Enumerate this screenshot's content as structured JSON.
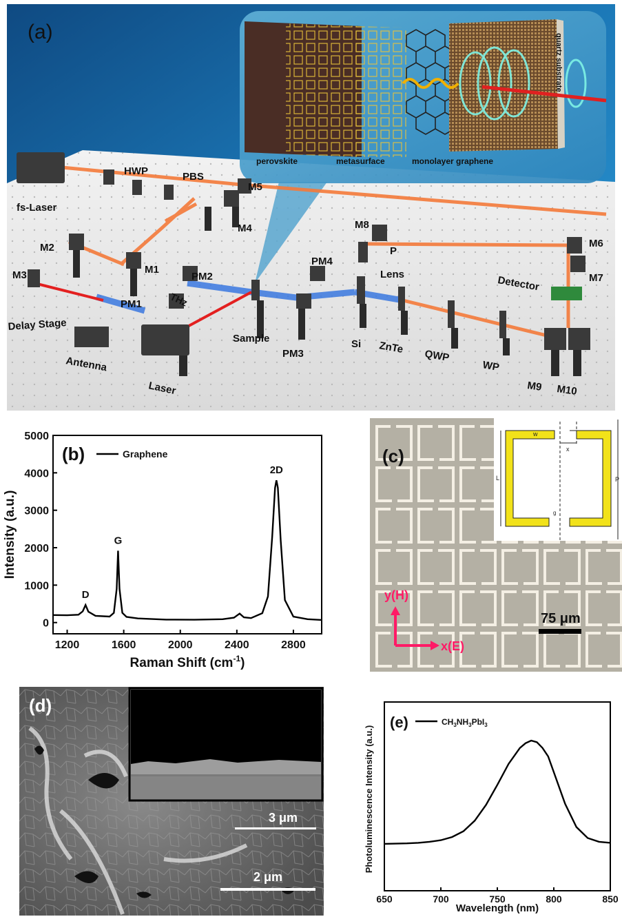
{
  "panel_a": {
    "letter": "(a)",
    "inset_labels": {
      "perovskite": "perovskite",
      "metasurface": "metasurface",
      "graphene": "monolayer graphene",
      "substrate": "quartz substrate"
    },
    "components": {
      "fs_laser": "fs-Laser",
      "hwp": "HWP",
      "pbs": "PBS",
      "m1": "M1",
      "m2": "M2",
      "m3": "M3",
      "m4": "M4",
      "m5": "M5",
      "m6": "M6",
      "m7": "M7",
      "m8": "M8",
      "m9": "M9",
      "m10": "M10",
      "pm1": "PM1",
      "pm2": "PM2",
      "pm3": "PM3",
      "pm4": "PM4",
      "thz": "THz",
      "delay_stage": "Delay Stage",
      "antenna": "Antenna",
      "laser": "Laser",
      "sample": "Sample",
      "si": "Si",
      "znte": "ZnTe",
      "qwp": "QWP",
      "wp": "WP",
      "p": "P",
      "lens": "Lens",
      "detector": "Detector"
    }
  },
  "panel_c": {
    "letter": "(c)",
    "scalebar": "75 μm",
    "axis_y": "y(H)",
    "axis_x": "x(E)",
    "inset": {
      "w": "w",
      "x": "x",
      "L": "L",
      "P": "P",
      "g": "g"
    }
  },
  "panel_d": {
    "letter": "(d)",
    "scalebar_main": "2 μm",
    "scalebar_inset": "3 μm"
  },
  "chart_data": [
    {
      "type": "line",
      "panel": "(b)",
      "xlabel_main": "Raman Shift (cm",
      "xlabel_sup": "-1",
      "xlabel_end": ")",
      "ylabel": "Intensity (a.u.)",
      "xlim": [
        1100,
        3000
      ],
      "ylim": [
        -300,
        5000
      ],
      "xticks": [
        1200,
        1600,
        2000,
        2400,
        2800
      ],
      "yticks": [
        0,
        1000,
        2000,
        3000,
        4000,
        5000
      ],
      "legend": "Graphene",
      "annotations": [
        {
          "text": "D",
          "x": 1330,
          "y": 470
        },
        {
          "text": "G",
          "x": 1560,
          "y": 1920
        },
        {
          "text": "2D",
          "x": 2680,
          "y": 3800
        }
      ],
      "series": [
        {
          "name": "Graphene",
          "x": [
            1100,
            1200,
            1280,
            1310,
            1330,
            1350,
            1400,
            1500,
            1530,
            1550,
            1560,
            1570,
            1590,
            1620,
            1700,
            1900,
            2100,
            2300,
            2380,
            2420,
            2450,
            2500,
            2580,
            2620,
            2650,
            2670,
            2680,
            2690,
            2710,
            2740,
            2800,
            2900,
            3000
          ],
          "y": [
            200,
            195,
            210,
            300,
            470,
            290,
            180,
            160,
            260,
            900,
            1920,
            900,
            260,
            150,
            110,
            80,
            75,
            90,
            130,
            240,
            140,
            120,
            250,
            700,
            2300,
            3600,
            3800,
            3600,
            2200,
            600,
            160,
            90,
            70
          ]
        }
      ]
    },
    {
      "type": "line",
      "panel": "(e)",
      "xlabel": "Wavelength (nm)",
      "ylabel": "Photoluminescence Intensity (a.u.)",
      "xlim": [
        650,
        850
      ],
      "xticks": [
        650,
        700,
        750,
        800,
        850
      ],
      "legend_base": "CH",
      "legend_parts": [
        "3",
        "NH",
        "3",
        "PbI",
        "3"
      ],
      "series": [
        {
          "name": "CH3NH3PbI3",
          "x": [
            650,
            660,
            670,
            680,
            690,
            700,
            710,
            720,
            730,
            740,
            750,
            760,
            770,
            775,
            780,
            785,
            790,
            795,
            800,
            810,
            820,
            830,
            840,
            850
          ],
          "y": [
            0.02,
            0.022,
            0.025,
            0.03,
            0.04,
            0.055,
            0.085,
            0.14,
            0.24,
            0.39,
            0.58,
            0.78,
            0.93,
            0.975,
            1.0,
            0.985,
            0.93,
            0.85,
            0.7,
            0.4,
            0.18,
            0.075,
            0.04,
            0.03
          ]
        }
      ]
    }
  ]
}
